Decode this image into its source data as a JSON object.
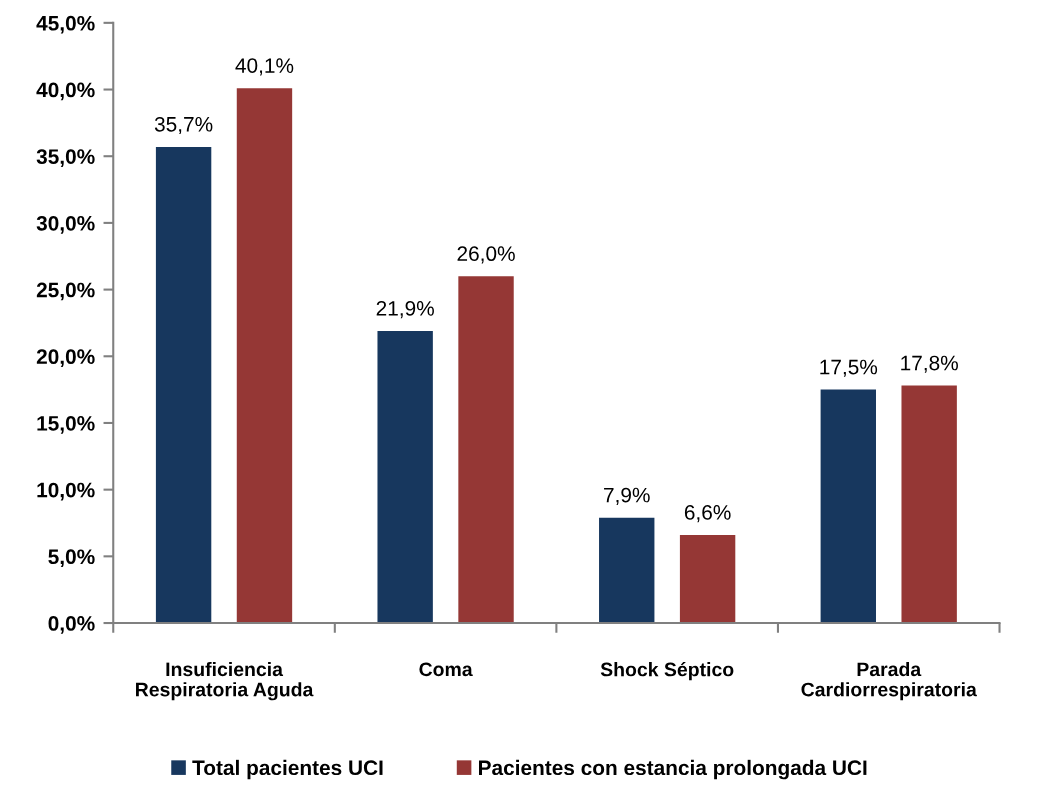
{
  "chart_data": {
    "type": "bar",
    "categories": [
      "Insuficiencia\nRespiratoria Aguda",
      "Coma",
      "Shock Séptico",
      "Parada\nCardiorrespiratoria"
    ],
    "series": [
      {
        "name": "Total pacientes UCI",
        "color": "#17375e",
        "values": [
          35.7,
          21.9,
          7.9,
          17.5
        ],
        "value_labels": [
          "35,7%",
          "21,9%",
          "7,9%",
          "17,5%"
        ]
      },
      {
        "name": "Pacientes con estancia prolongada UCI",
        "color": "#953735",
        "values": [
          40.1,
          26.0,
          6.6,
          17.8
        ],
        "value_labels": [
          "40,1%",
          "26,0%",
          "6,6%",
          "17,8%"
        ]
      }
    ],
    "ylim": [
      0,
      45
    ],
    "yticks": [
      {
        "value": 0,
        "label": "0,0%"
      },
      {
        "value": 5,
        "label": "5,0%"
      },
      {
        "value": 10,
        "label": "10,0%"
      },
      {
        "value": 15,
        "label": "15,0%"
      },
      {
        "value": 20,
        "label": "20,0%"
      },
      {
        "value": 25,
        "label": "25,0%"
      },
      {
        "value": 30,
        "label": "30,0%"
      },
      {
        "value": 35,
        "label": "35,0%"
      },
      {
        "value": 40,
        "label": "40,0%"
      },
      {
        "value": 45,
        "label": "45,0%"
      }
    ],
    "grid": false,
    "legend": "bottom"
  }
}
